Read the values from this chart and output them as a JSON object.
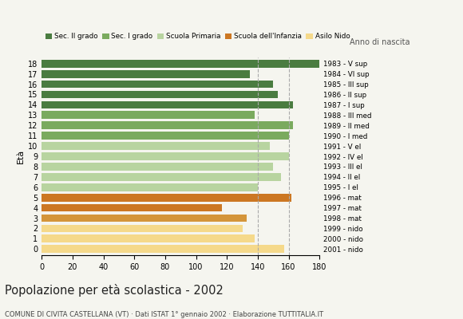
{
  "ages": [
    18,
    17,
    16,
    15,
    14,
    13,
    12,
    11,
    10,
    9,
    8,
    7,
    6,
    5,
    4,
    3,
    2,
    1,
    0
  ],
  "values": [
    180,
    135,
    150,
    153,
    163,
    138,
    163,
    160,
    148,
    160,
    150,
    155,
    140,
    162,
    117,
    133,
    130,
    138,
    157
  ],
  "right_labels": [
    "1983 - V sup",
    "1984 - VI sup",
    "1985 - III sup",
    "1986 - II sup",
    "1987 - I sup",
    "1988 - III med",
    "1989 - II med",
    "1990 - I med",
    "1991 - V el",
    "1992 - IV el",
    "1993 - III el",
    "1994 - II el",
    "1995 - I el",
    "1996 - mat",
    "1997 - mat",
    "1998 - mat",
    "1999 - nido",
    "2000 - nido",
    "2001 - nido"
  ],
  "colors": [
    "#4a7c40",
    "#4a7c40",
    "#4a7c40",
    "#4a7c40",
    "#4a7c40",
    "#7aaa5e",
    "#7aaa5e",
    "#7aaa5e",
    "#b8d4a0",
    "#b8d4a0",
    "#b8d4a0",
    "#b8d4a0",
    "#b8d4a0",
    "#cc7722",
    "#cc7722",
    "#d4953a",
    "#f5d98a",
    "#f5d98a",
    "#f5d98a"
  ],
  "legend_labels": [
    "Sec. II grado",
    "Sec. I grado",
    "Scuola Primaria",
    "Scuola dell'Infanzia",
    "Asilo Nido"
  ],
  "legend_colors": [
    "#4a7c40",
    "#7aaa5e",
    "#b8d4a0",
    "#cc7722",
    "#f5d98a"
  ],
  "ylabel_left": "Età",
  "anno_label": "Anno di nascita",
  "title": "Popolazione per età scolastica - 2002",
  "subtitle": "COMUNE DI CIVITA CASTELLANA (VT) · Dati ISTAT 1° gennaio 2002 · Elaborazione TUTTITALIA.IT",
  "xlim": [
    0,
    180
  ],
  "xticks": [
    0,
    20,
    40,
    60,
    80,
    100,
    120,
    140,
    160,
    180
  ],
  "dashed_lines": [
    140,
    160
  ],
  "bar_height": 0.75,
  "background_color": "#f5f5ef"
}
